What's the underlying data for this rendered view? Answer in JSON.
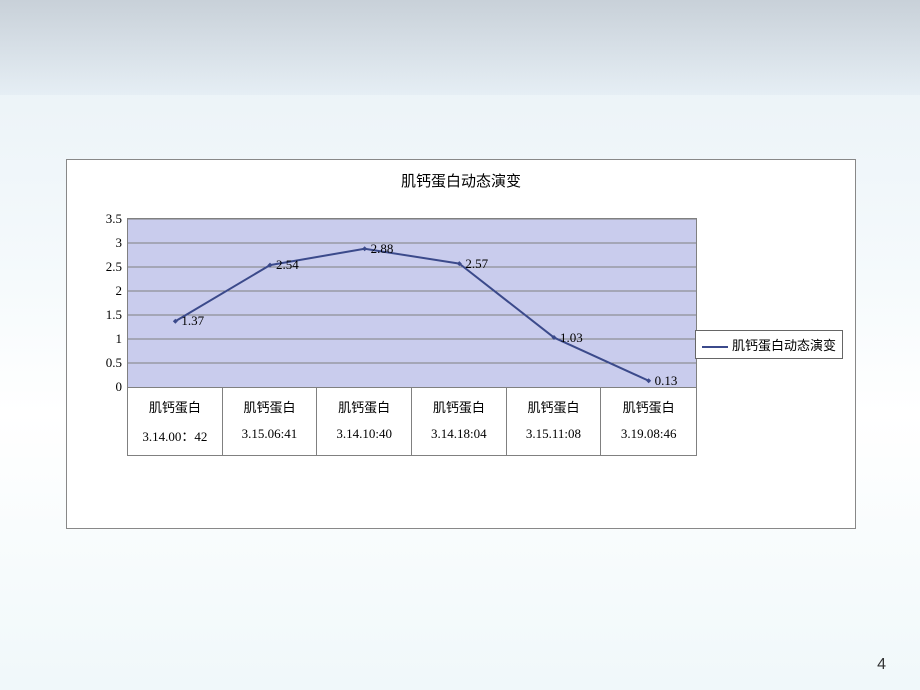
{
  "chart": {
    "type": "line",
    "title": "肌钙蛋白动态演变",
    "title_fontsize": 15,
    "title_color": "#000000",
    "series_name": "肌钙蛋白动态演变",
    "categories_row1": [
      "肌钙蛋白",
      "肌钙蛋白",
      "肌钙蛋白",
      "肌钙蛋白",
      "肌钙蛋白",
      "肌钙蛋白"
    ],
    "categories_row2": [
      "3.14.00：42",
      "3.15.06:41",
      "3.14.10:40",
      "3.14.18:04",
      "3.15.11:08",
      "3.19.08:46"
    ],
    "values": [
      1.37,
      2.54,
      2.88,
      2.57,
      1.03,
      0.13
    ],
    "line_color": "#3b4a8b",
    "line_width": 2,
    "marker_style": "diamond",
    "marker_size": 5,
    "plot_bg_color": "#c9cced",
    "chart_bg_color": "#ffffff",
    "grid_color": "#808080",
    "border_color": "#808080",
    "ylim": [
      0,
      3.5
    ],
    "ytick_step": 0.5,
    "yticks": [
      "0",
      "0.5",
      "1",
      "1.5",
      "2",
      "2.5",
      "3",
      "3.5"
    ],
    "label_fontsize": 13,
    "font_family": "SimSun"
  },
  "page_number": "4"
}
